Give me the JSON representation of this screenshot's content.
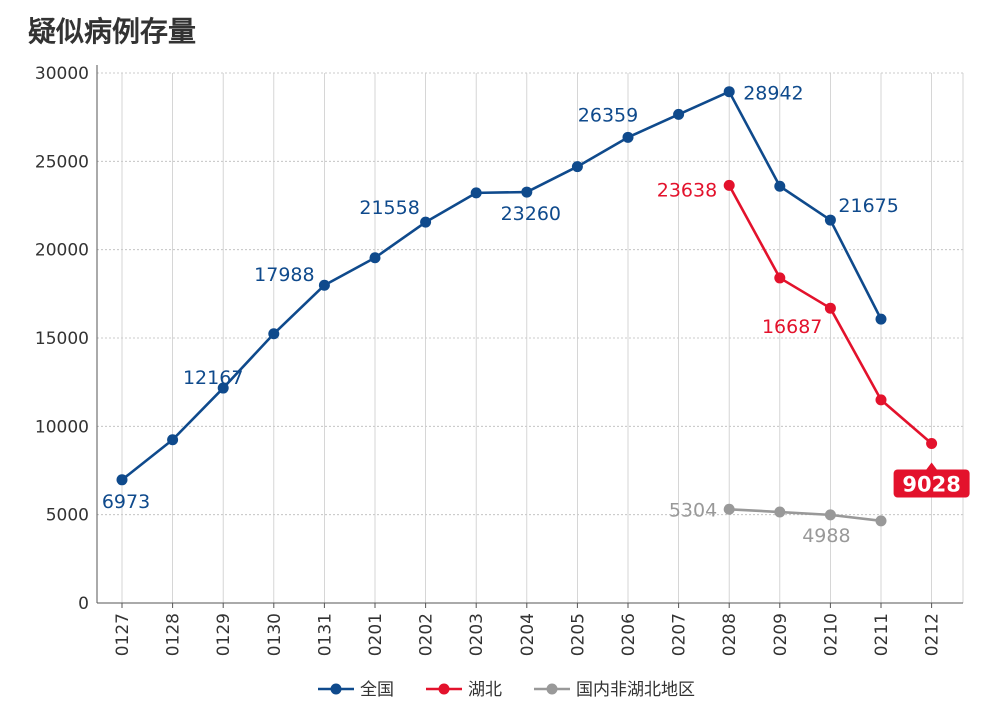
{
  "chart_data": {
    "type": "line",
    "title": "疑似病例存量",
    "xlabel": "",
    "ylabel": "",
    "categories": [
      "0127",
      "0128",
      "0129",
      "0130",
      "0131",
      "0201",
      "0202",
      "0203",
      "0204",
      "0205",
      "0206",
      "0207",
      "0208",
      "0209",
      "0210",
      "0211",
      "0212"
    ],
    "ylim": [
      0,
      30000
    ],
    "yticks": [
      0,
      5000,
      10000,
      15000,
      20000,
      25000,
      30000
    ],
    "grid": true,
    "legend_position": "bottom",
    "series": [
      {
        "name": "全国",
        "color": "#0f4a8c",
        "values": [
          6973,
          9239,
          12167,
          15238,
          17988,
          19544,
          21558,
          23214,
          23260,
          24702,
          26359,
          27657,
          28942,
          23589,
          21675,
          16067,
          null
        ]
      },
      {
        "name": "湖北",
        "color": "#e3122c",
        "values": [
          null,
          null,
          null,
          null,
          null,
          null,
          null,
          null,
          null,
          null,
          null,
          null,
          23638,
          18400,
          16687,
          11500,
          9028
        ]
      },
      {
        "name": "国内非湖北地区",
        "color": "#999999",
        "values": [
          null,
          null,
          null,
          null,
          null,
          null,
          null,
          null,
          null,
          null,
          null,
          null,
          5304,
          5150,
          4988,
          4650,
          null
        ]
      }
    ],
    "annotations": [
      {
        "series": 0,
        "index": 0,
        "text": "6973"
      },
      {
        "series": 0,
        "index": 2,
        "text": "12167"
      },
      {
        "series": 0,
        "index": 4,
        "text": "17988"
      },
      {
        "series": 0,
        "index": 6,
        "text": "21558"
      },
      {
        "series": 0,
        "index": 8,
        "text": "23260"
      },
      {
        "series": 0,
        "index": 10,
        "text": "26359"
      },
      {
        "series": 0,
        "index": 12,
        "text": "28942"
      },
      {
        "series": 0,
        "index": 14,
        "text": "21675"
      },
      {
        "series": 1,
        "index": 12,
        "text": "23638"
      },
      {
        "series": 1,
        "index": 14,
        "text": "16687"
      },
      {
        "series": 1,
        "index": 16,
        "text": "9028",
        "highlight": true
      },
      {
        "series": 2,
        "index": 12,
        "text": "5304"
      },
      {
        "series": 2,
        "index": 14,
        "text": "4988"
      }
    ]
  }
}
